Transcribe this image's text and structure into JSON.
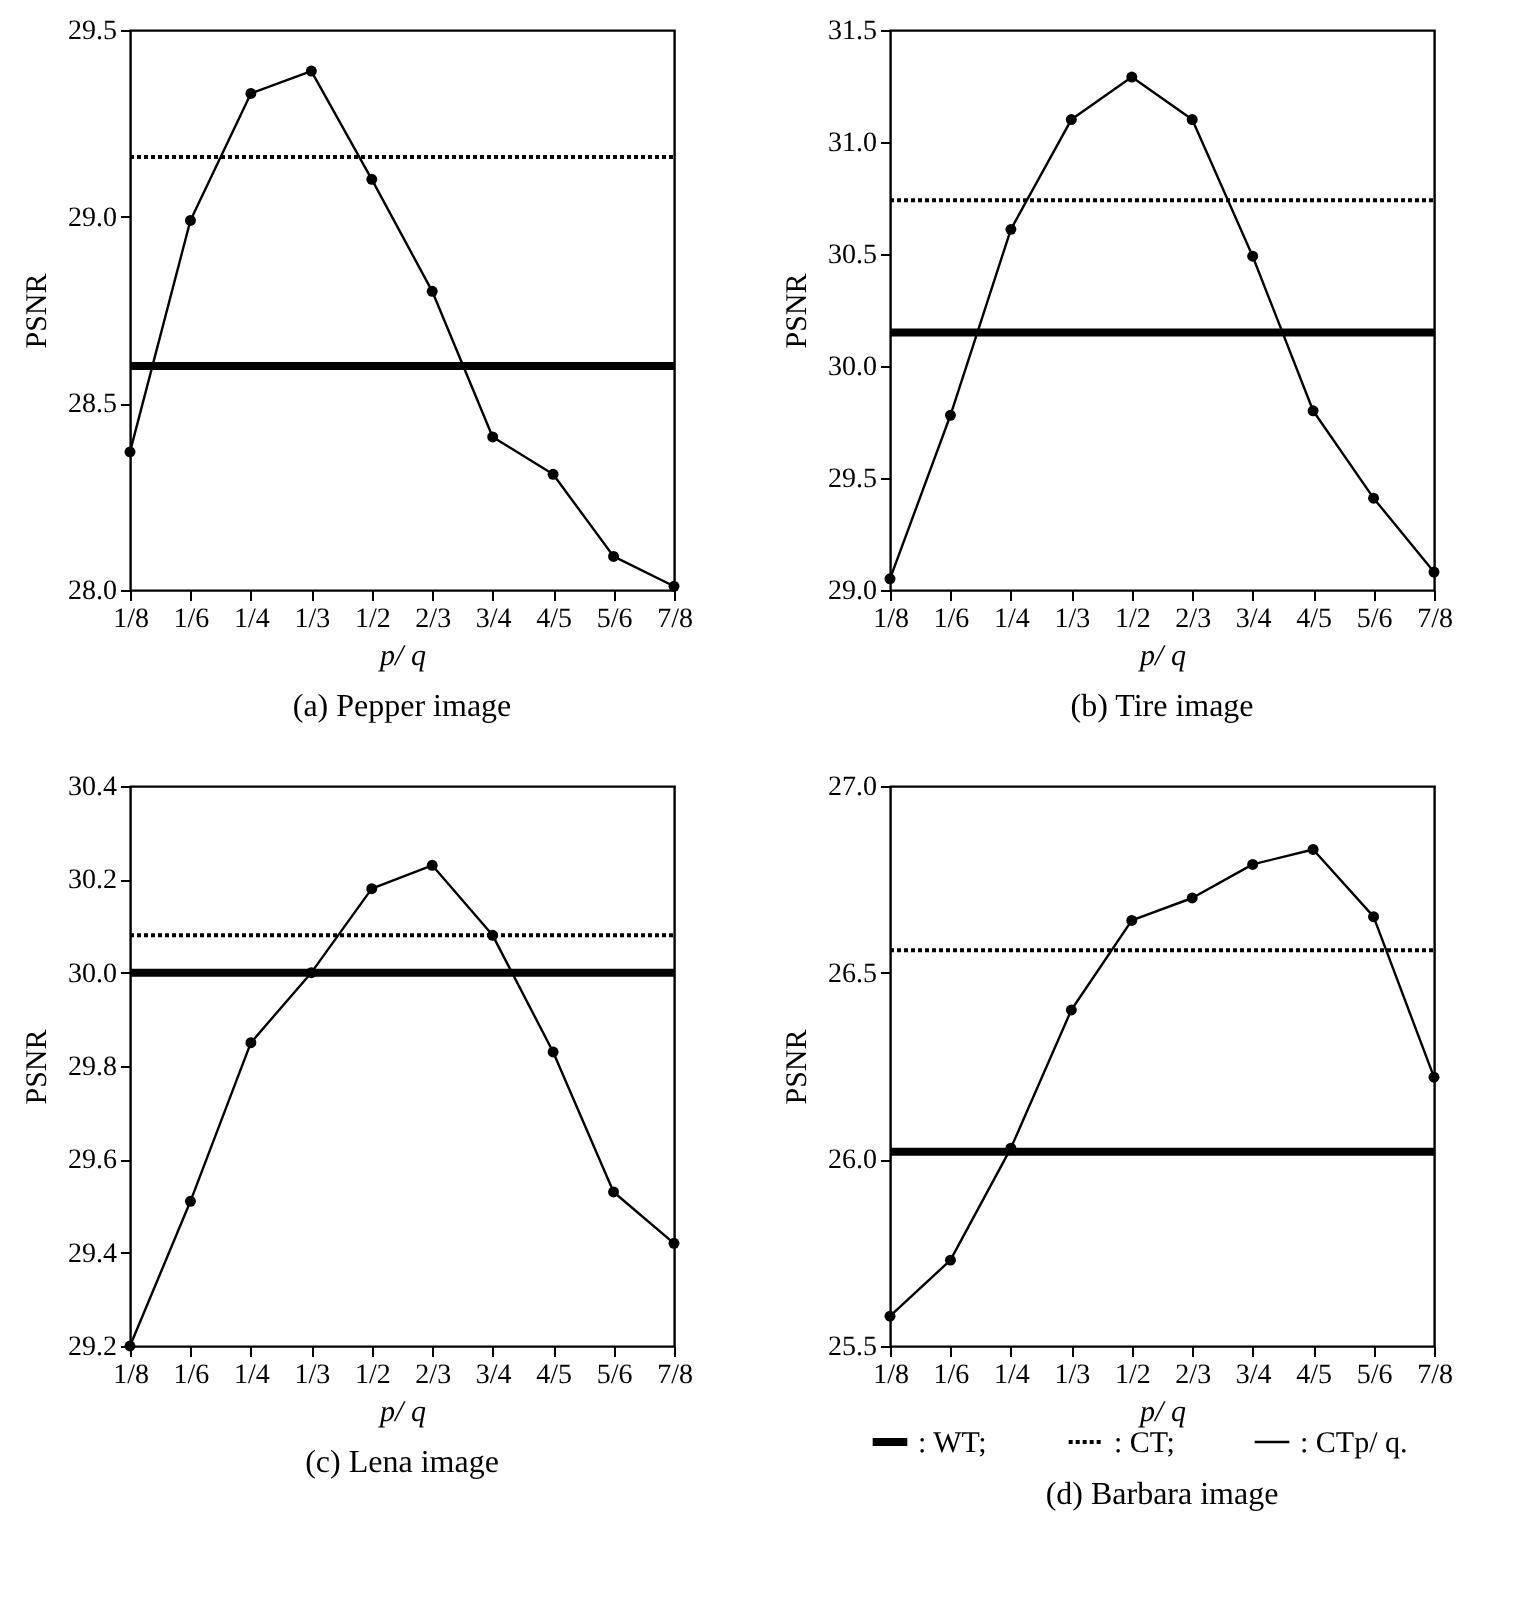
{
  "chart_data": [
    {
      "type": "line",
      "title": "(a) Pepper image",
      "xlabel": "p/ q",
      "ylabel": "PSNR",
      "categories": [
        "1/8",
        "1/6",
        "1/4",
        "1/3",
        "1/2",
        "2/3",
        "3/4",
        "4/5",
        "5/6",
        "7/8"
      ],
      "ylim": [
        28,
        29.5
      ],
      "yticks": [
        {
          "value": 28,
          "label": "28.0"
        },
        28.5,
        {
          "value": 29,
          "label": "29.0"
        },
        29.5
      ],
      "series": [
        {
          "color": "#000000",
          "line_style": "solid",
          "marker": "none",
          "values": [
            28.6,
            28.6,
            28.6,
            28.6,
            28.6,
            28.6,
            28.6,
            28.6,
            28.6,
            28.6
          ]
        },
        {
          "color": "#000000",
          "line_style": "dotted",
          "marker": "none",
          "values": [
            29.16,
            29.16,
            29.16,
            29.16,
            29.16,
            29.16,
            29.16,
            29.16,
            29.16,
            29.16
          ]
        },
        {
          "color": "#000000",
          "line_style": "solid",
          "marker": "circle",
          "values": [
            28.37,
            28.99,
            29.33,
            29.39,
            29.1,
            28.8,
            28.41,
            28.31,
            28.09,
            28.01
          ]
        }
      ]
    },
    {
      "type": "line",
      "title": "(b) Tire image",
      "xlabel": "p/ q",
      "ylabel": "PSNR",
      "categories": [
        "1/8",
        "1/6",
        "1/4",
        "1/3",
        "1/2",
        "2/3",
        "3/4",
        "4/5",
        "5/6",
        "7/8"
      ],
      "ylim": [
        29,
        31.5
      ],
      "yticks": [
        {
          "value": 29,
          "label": "29.0"
        },
        29.5,
        {
          "value": 30,
          "label": "30.0"
        },
        30.5,
        {
          "value": 31,
          "label": "31.0"
        },
        31.5
      ],
      "series": [
        {
          "color": "#000000",
          "line_style": "solid",
          "marker": "none",
          "values": [
            30.15,
            30.15,
            30.15,
            30.15,
            30.15,
            30.15,
            30.15,
            30.15,
            30.15,
            30.15
          ]
        },
        {
          "color": "#000000",
          "line_style": "dotted",
          "marker": "none",
          "values": [
            30.74,
            30.74,
            30.74,
            30.74,
            30.74,
            30.74,
            30.74,
            30.74,
            30.74,
            30.74
          ]
        },
        {
          "color": "#000000",
          "line_style": "solid",
          "marker": "circle",
          "values": [
            29.05,
            29.78,
            30.61,
            31.1,
            31.29,
            31.1,
            30.49,
            29.8,
            29.41,
            29.08
          ]
        }
      ]
    },
    {
      "type": "line",
      "title": "(c) Lena image",
      "xlabel": "p/ q",
      "ylabel": "PSNR",
      "categories": [
        "1/8",
        "1/6",
        "1/4",
        "1/3",
        "1/2",
        "2/3",
        "3/4",
        "4/5",
        "5/6",
        "7/8"
      ],
      "ylim": [
        29.2,
        30.4
      ],
      "yticks": [
        29.2,
        29.4,
        29.6,
        29.8,
        {
          "value": 30,
          "label": "30.0"
        },
        30.2,
        30.4
      ],
      "series": [
        {
          "color": "#000000",
          "line_style": "solid",
          "marker": "none",
          "values": [
            30.0,
            30.0,
            30.0,
            30.0,
            30.0,
            30.0,
            30.0,
            30.0,
            30.0,
            30.0
          ]
        },
        {
          "color": "#000000",
          "line_style": "dotted",
          "marker": "none",
          "values": [
            30.08,
            30.08,
            30.08,
            30.08,
            30.08,
            30.08,
            30.08,
            30.08,
            30.08,
            30.08
          ]
        },
        {
          "color": "#000000",
          "line_style": "solid",
          "marker": "circle",
          "values": [
            29.2,
            29.51,
            29.85,
            30.0,
            30.18,
            30.23,
            30.08,
            29.83,
            29.53,
            29.42
          ]
        }
      ]
    },
    {
      "type": "line",
      "title": "(d) Barbara image",
      "xlabel": "p/ q",
      "ylabel": "PSNR",
      "categories": [
        "1/8",
        "1/6",
        "1/4",
        "1/3",
        "1/2",
        "2/3",
        "3/4",
        "4/5",
        "5/6",
        "7/8"
      ],
      "ylim": [
        25.5,
        27
      ],
      "yticks": [
        25.5,
        {
          "value": 26,
          "label": "26.0"
        },
        26.5,
        {
          "value": 27,
          "label": "27.0"
        }
      ],
      "legend": "bottom",
      "series": [
        {
          "name": ": WT;",
          "color": "#000000",
          "line_style": "solid",
          "marker": "none",
          "values": [
            26.02,
            26.02,
            26.02,
            26.02,
            26.02,
            26.02,
            26.02,
            26.02,
            26.02,
            26.02
          ]
        },
        {
          "name": ": CT;",
          "color": "#000000",
          "line_style": "dotted",
          "marker": "none",
          "values": [
            26.56,
            26.56,
            26.56,
            26.56,
            26.56,
            26.56,
            26.56,
            26.56,
            26.56,
            26.56
          ]
        },
        {
          "name": ": CTp/ q.",
          "color": "#000000",
          "line_style": "solid",
          "marker": "circle",
          "values": [
            25.58,
            25.73,
            26.03,
            26.4,
            26.64,
            26.7,
            26.79,
            26.83,
            26.65,
            26.22
          ]
        }
      ]
    }
  ]
}
